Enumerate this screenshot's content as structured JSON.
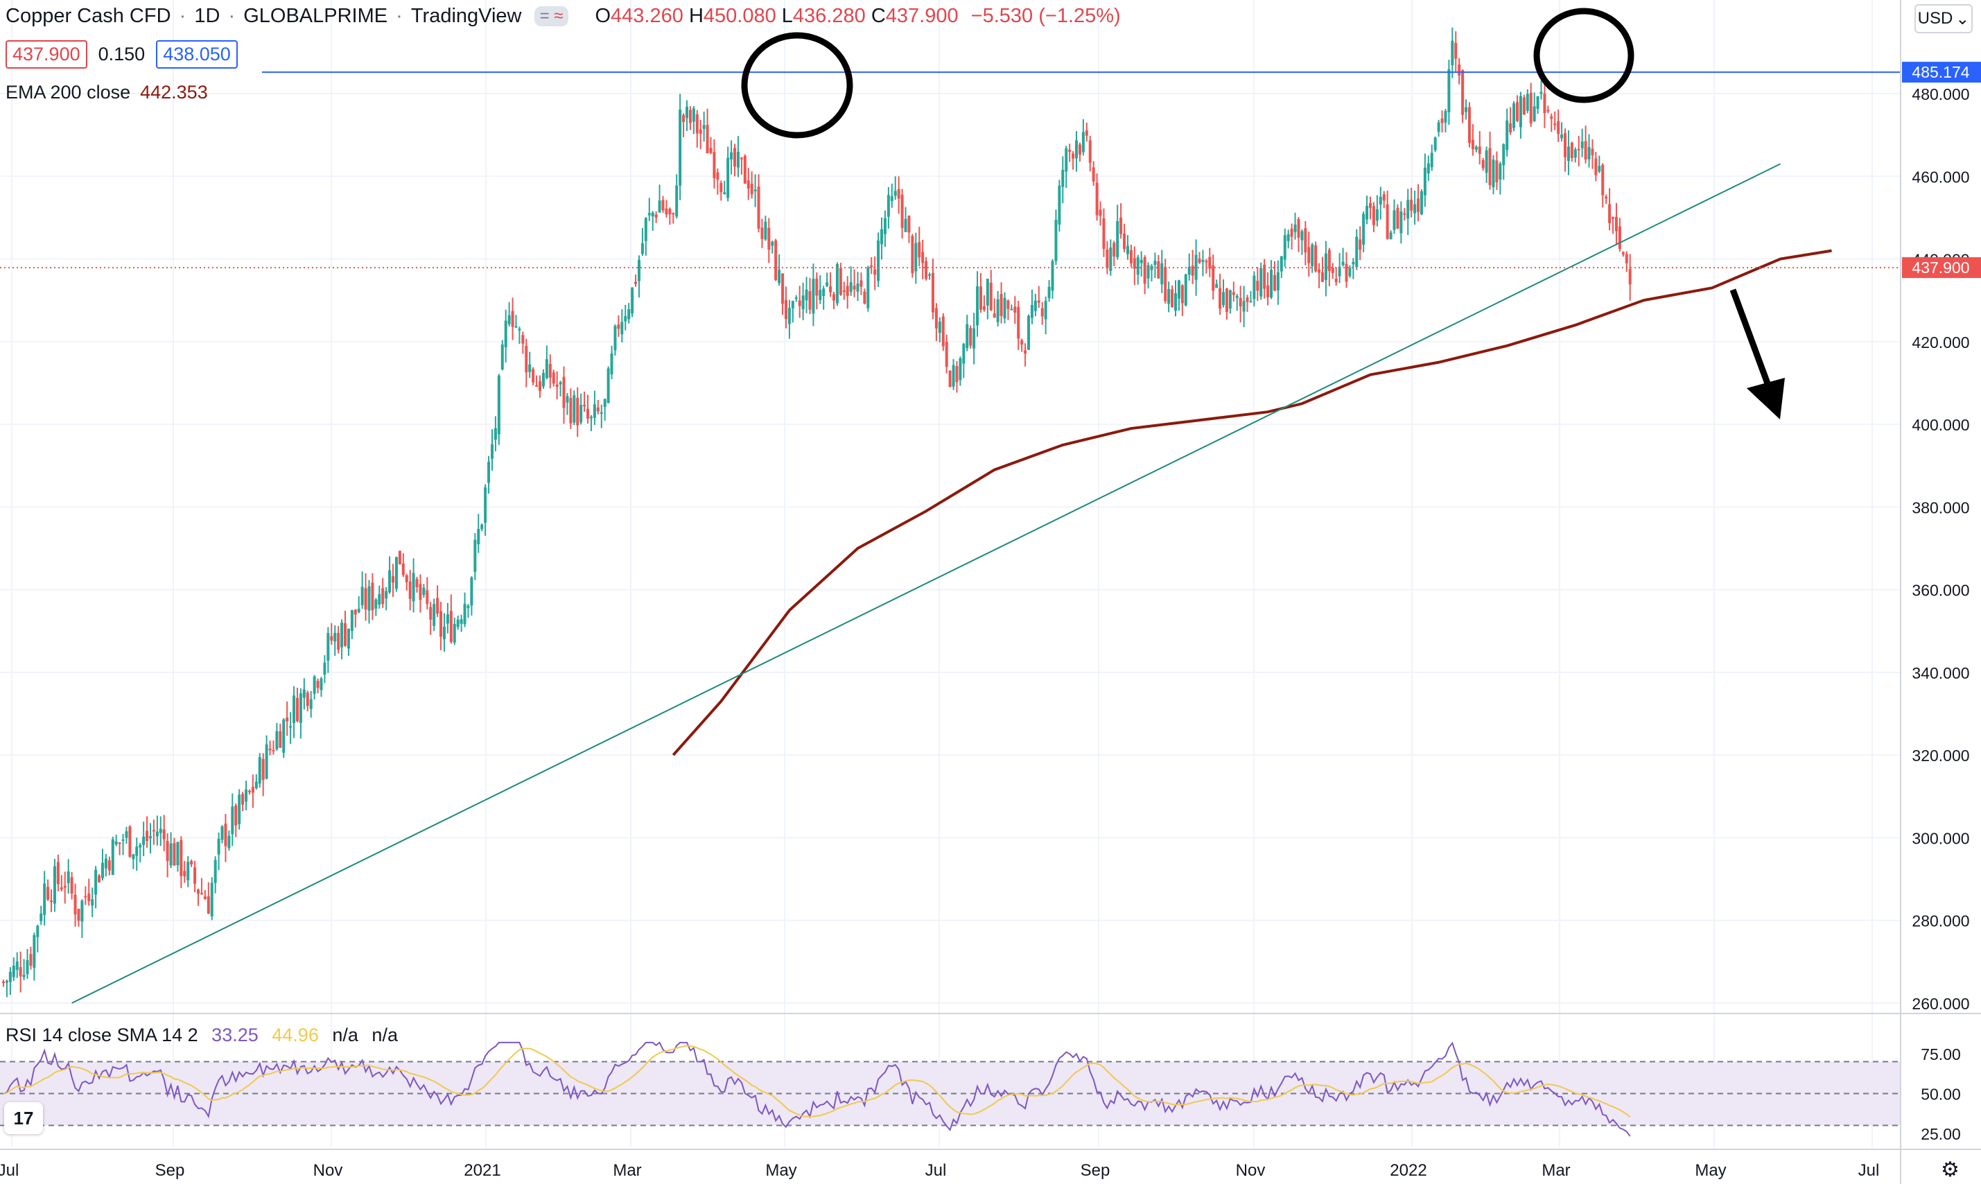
{
  "legend": {
    "symbol": "Copper Cash CFD",
    "interval": "1D",
    "broker": "GLOBALPRIME",
    "platform": "TradingView",
    "toggle_minus": "=",
    "toggle_wave": "≈",
    "open_label": "O",
    "open": "443.260",
    "high_label": "H",
    "high": "450.080",
    "low_label": "L",
    "low": "436.280",
    "close_label": "C",
    "close": "437.900",
    "change": "−5.530 (−1.25%)"
  },
  "quote": {
    "bid": "437.900",
    "spread": "0.150",
    "ask": "438.050"
  },
  "ema": {
    "label": "EMA 200 close",
    "value": "442.353"
  },
  "rsi": {
    "label": "RSI 14 close SMA 14 2",
    "value1": "33.25",
    "value2": "44.96",
    "na1": "n/a",
    "na2": "n/a"
  },
  "currency": "USD",
  "currency_chevron": "⌄",
  "tv_logo": "17",
  "gear": "⚙",
  "colors": {
    "up": "#26a69a",
    "down": "#ef5350",
    "ema": "#8b1a0d",
    "trendline": "#1e8a7a",
    "resistance": "#2962ff",
    "rsi": "#7e57c2",
    "rsi_sma": "#f2c94c",
    "rsi_band": "#ede7f6"
  },
  "chart_data": {
    "type": "candlestick",
    "price_axis": {
      "min": 260,
      "max": 480,
      "ticks": [
        "480.000",
        "460.000",
        "440.000",
        "420.000",
        "400.000",
        "380.000",
        "360.000",
        "340.000",
        "320.000",
        "300.000",
        "280.000",
        "260.000"
      ]
    },
    "price_badges": {
      "resistance": "485.174",
      "last": "437.900"
    },
    "time_axis": [
      "Jul",
      "Sep",
      "Nov",
      "2021",
      "Mar",
      "May",
      "Jul",
      "Sep",
      "Nov",
      "2022",
      "Mar",
      "May",
      "Jul"
    ],
    "rsi_axis": [
      "75.00",
      "50.00",
      "25.00"
    ],
    "resistance_level": 485.174,
    "last_price": 437.9,
    "close_path": [
      [
        0,
        265
      ],
      [
        8,
        272
      ],
      [
        12,
        288
      ],
      [
        18,
        290
      ],
      [
        22,
        282
      ],
      [
        25,
        288
      ],
      [
        30,
        295
      ],
      [
        35,
        300
      ],
      [
        40,
        298
      ],
      [
        45,
        302
      ],
      [
        50,
        296
      ],
      [
        55,
        290
      ],
      [
        60,
        285
      ],
      [
        64,
        300
      ],
      [
        68,
        305
      ],
      [
        72,
        310
      ],
      [
        76,
        318
      ],
      [
        80,
        325
      ],
      [
        84,
        330
      ],
      [
        88,
        335
      ],
      [
        92,
        340
      ],
      [
        96,
        348
      ],
      [
        100,
        350
      ],
      [
        104,
        356
      ],
      [
        108,
        358
      ],
      [
        112,
        362
      ],
      [
        116,
        368
      ],
      [
        120,
        360
      ],
      [
        124,
        355
      ],
      [
        128,
        350
      ],
      [
        132,
        352
      ],
      [
        136,
        360
      ],
      [
        140,
        378
      ],
      [
        144,
        400
      ],
      [
        148,
        430
      ],
      [
        152,
        418
      ],
      [
        156,
        410
      ],
      [
        160,
        412
      ],
      [
        164,
        406
      ],
      [
        168,
        403
      ],
      [
        172,
        400
      ],
      [
        176,
        404
      ],
      [
        180,
        425
      ],
      [
        184,
        432
      ],
      [
        188,
        448
      ],
      [
        192,
        454
      ],
      [
        196,
        448
      ],
      [
        198,
        474
      ],
      [
        202,
        473
      ],
      [
        206,
        468
      ],
      [
        210,
        460
      ],
      [
        214,
        462
      ],
      [
        218,
        460
      ],
      [
        222,
        448
      ],
      [
        226,
        438
      ],
      [
        230,
        424
      ],
      [
        234,
        430
      ],
      [
        238,
        432
      ],
      [
        242,
        434
      ],
      [
        246,
        435
      ],
      [
        250,
        430
      ],
      [
        254,
        436
      ],
      [
        258,
        450
      ],
      [
        262,
        455
      ],
      [
        266,
        440
      ],
      [
        270,
        438
      ],
      [
        274,
        424
      ],
      [
        278,
        410
      ],
      [
        282,
        420
      ],
      [
        286,
        432
      ],
      [
        290,
        430
      ],
      [
        294,
        428
      ],
      [
        298,
        420
      ],
      [
        302,
        426
      ],
      [
        306,
        434
      ],
      [
        310,
        462
      ],
      [
        314,
        470
      ],
      [
        318,
        464
      ],
      [
        322,
        440
      ],
      [
        326,
        445
      ],
      [
        330,
        442
      ],
      [
        334,
        438
      ],
      [
        338,
        436
      ],
      [
        342,
        430
      ],
      [
        346,
        432
      ],
      [
        350,
        440
      ],
      [
        354,
        432
      ],
      [
        358,
        430
      ],
      [
        362,
        428
      ],
      [
        366,
        436
      ],
      [
        370,
        432
      ],
      [
        374,
        440
      ],
      [
        378,
        445
      ],
      [
        382,
        442
      ],
      [
        386,
        438
      ],
      [
        390,
        436
      ],
      [
        394,
        440
      ],
      [
        398,
        448
      ],
      [
        402,
        452
      ],
      [
        406,
        448
      ],
      [
        410,
        452
      ],
      [
        414,
        455
      ],
      [
        418,
        470
      ],
      [
        422,
        476
      ],
      [
        424,
        490
      ],
      [
        428,
        474
      ],
      [
        432,
        468
      ],
      [
        436,
        460
      ],
      [
        440,
        472
      ],
      [
        444,
        475
      ],
      [
        448,
        478
      ],
      [
        452,
        474
      ],
      [
        456,
        470
      ],
      [
        460,
        464
      ],
      [
        464,
        466
      ],
      [
        468,
        456
      ],
      [
        472,
        444
      ],
      [
        476,
        438
      ]
    ],
    "close_path_x_range": [
      0,
      500
    ],
    "ema_path": [
      [
        196,
        320
      ],
      [
        210,
        333
      ],
      [
        230,
        355
      ],
      [
        250,
        370
      ],
      [
        270,
        379
      ],
      [
        290,
        389
      ],
      [
        310,
        395
      ],
      [
        330,
        399
      ],
      [
        350,
        401
      ],
      [
        370,
        403
      ],
      [
        380,
        405
      ],
      [
        400,
        412
      ],
      [
        420,
        415
      ],
      [
        440,
        419
      ],
      [
        460,
        424
      ],
      [
        480,
        430
      ],
      [
        500,
        433
      ],
      [
        520,
        440
      ],
      [
        535,
        442
      ]
    ],
    "ema_path_x_range": [
      0,
      500
    ],
    "trendline": [
      [
        20,
        260
      ],
      [
        520,
        463
      ]
    ],
    "rsi_bands": {
      "upper": 70,
      "middle": 50,
      "lower": 30
    }
  },
  "annotations": {
    "circles": [
      "May 2021 high",
      "Mar 2022 high"
    ],
    "arrow": "down"
  }
}
